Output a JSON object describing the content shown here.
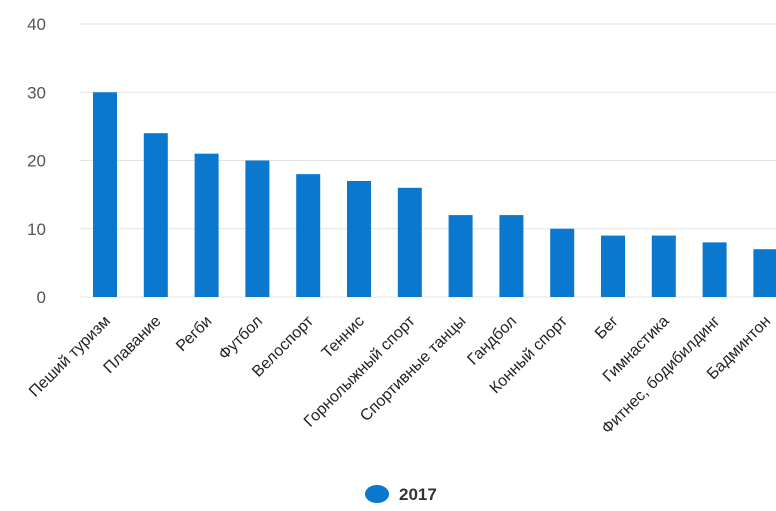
{
  "chart_data": {
    "type": "bar",
    "categories": [
      "Пеший туризм",
      "Плавание",
      "Регби",
      "Футбол",
      "Велоспорт",
      "Теннис",
      "Горнолыжный спорт",
      "Спортивные танцы",
      "Гандбол",
      "Конный спорт",
      "Бег",
      "Гимнастика",
      "Фитнес, бодибилдинг",
      "Бадминтон"
    ],
    "series": [
      {
        "name": "2017",
        "values": [
          30,
          24,
          21,
          20,
          18,
          17,
          16,
          12,
          12,
          10,
          9,
          9,
          8,
          7
        ],
        "color": "#0a78cf"
      }
    ],
    "yticks": [
      0,
      10,
      20,
      30,
      40
    ],
    "ylim": [
      0,
      40
    ],
    "grid": true,
    "legend_position": "bottom-center"
  }
}
